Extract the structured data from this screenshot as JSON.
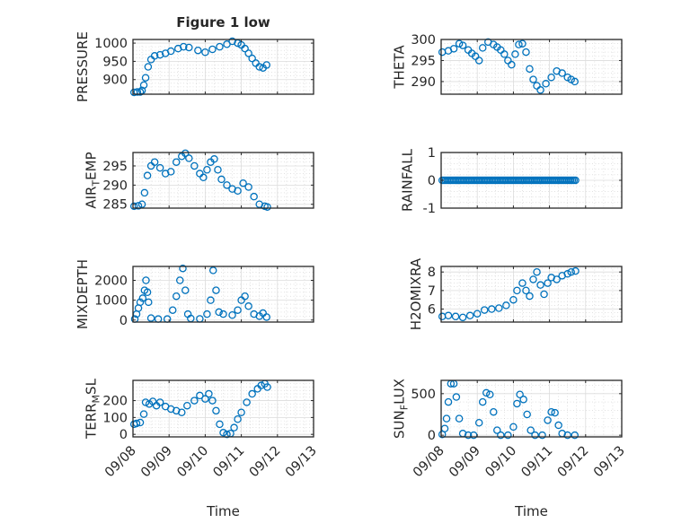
{
  "chart_data": {
    "type": "scatter",
    "marker": "open-circle",
    "color": "#0072BD",
    "title": "Figure 1 low",
    "xlabel": "Time",
    "x_ticks": [
      "09/08",
      "09/09",
      "09/10",
      "09/11",
      "09/12",
      "09/13"
    ],
    "x_range_days": [
      0,
      5
    ],
    "x_start": "09/08",
    "panels": [
      {
        "id": "pressure",
        "ylabel": "PRESSURE",
        "yrange": [
          860,
          1010
        ],
        "yticks": [
          900,
          950,
          1000
        ],
        "ytick_labels": [
          "900",
          "950",
          "1000"
        ],
        "points": [
          [
            0.03,
            865
          ],
          [
            0.12,
            866
          ],
          [
            0.2,
            866
          ],
          [
            0.25,
            870
          ],
          [
            0.3,
            885
          ],
          [
            0.35,
            905
          ],
          [
            0.42,
            935
          ],
          [
            0.5,
            955
          ],
          [
            0.6,
            965
          ],
          [
            0.75,
            968
          ],
          [
            0.9,
            972
          ],
          [
            1.05,
            978
          ],
          [
            1.25,
            985
          ],
          [
            1.4,
            990
          ],
          [
            1.55,
            988
          ],
          [
            1.8,
            980
          ],
          [
            2.0,
            975
          ],
          [
            2.2,
            983
          ],
          [
            2.4,
            990
          ],
          [
            2.6,
            997
          ],
          [
            2.75,
            1005
          ],
          [
            2.9,
            1000
          ],
          [
            3.0,
            995
          ],
          [
            3.1,
            985
          ],
          [
            3.2,
            972
          ],
          [
            3.3,
            958
          ],
          [
            3.4,
            945
          ],
          [
            3.5,
            935
          ],
          [
            3.6,
            932
          ],
          [
            3.7,
            940
          ]
        ]
      },
      {
        "id": "theta",
        "ylabel": "THETA",
        "yrange": [
          287,
          300
        ],
        "yticks": [
          290,
          295,
          300
        ],
        "ytick_labels": [
          "290",
          "295",
          "300"
        ],
        "points": [
          [
            0.03,
            297
          ],
          [
            0.2,
            297.3
          ],
          [
            0.35,
            297.8
          ],
          [
            0.5,
            299
          ],
          [
            0.6,
            298.6
          ],
          [
            0.75,
            297.5
          ],
          [
            0.85,
            296.7
          ],
          [
            0.95,
            296
          ],
          [
            1.05,
            295
          ],
          [
            1.15,
            298
          ],
          [
            1.3,
            299.4
          ],
          [
            1.45,
            298.8
          ],
          [
            1.55,
            298.2
          ],
          [
            1.65,
            297.5
          ],
          [
            1.75,
            296.5
          ],
          [
            1.85,
            295
          ],
          [
            1.95,
            294
          ],
          [
            2.05,
            296.5
          ],
          [
            2.15,
            298.8
          ],
          [
            2.25,
            299
          ],
          [
            2.35,
            297
          ],
          [
            2.45,
            293
          ],
          [
            2.55,
            290.5
          ],
          [
            2.65,
            289
          ],
          [
            2.75,
            288
          ],
          [
            2.9,
            289.5
          ],
          [
            3.05,
            291
          ],
          [
            3.2,
            292.5
          ],
          [
            3.35,
            292
          ],
          [
            3.5,
            291
          ],
          [
            3.6,
            290.5
          ],
          [
            3.7,
            290
          ]
        ]
      },
      {
        "id": "air-temp",
        "ylabel": "AIR",
        "ylabel_sub": "T",
        "ylabel_tail": "EMP",
        "yrange": [
          284,
          298.5
        ],
        "yticks": [
          285,
          290,
          295
        ],
        "ytick_labels": [
          "285",
          "290",
          "295"
        ],
        "points": [
          [
            0.03,
            284.5
          ],
          [
            0.15,
            284.6
          ],
          [
            0.25,
            285
          ],
          [
            0.32,
            288
          ],
          [
            0.4,
            292.5
          ],
          [
            0.5,
            295
          ],
          [
            0.6,
            296
          ],
          [
            0.75,
            294.5
          ],
          [
            0.9,
            293
          ],
          [
            1.05,
            293.5
          ],
          [
            1.2,
            296
          ],
          [
            1.35,
            297.5
          ],
          [
            1.45,
            298.3
          ],
          [
            1.55,
            297
          ],
          [
            1.7,
            295
          ],
          [
            1.85,
            293
          ],
          [
            1.95,
            292
          ],
          [
            2.05,
            294
          ],
          [
            2.15,
            296
          ],
          [
            2.25,
            296.8
          ],
          [
            2.35,
            294
          ],
          [
            2.45,
            291.5
          ],
          [
            2.6,
            290
          ],
          [
            2.75,
            289
          ],
          [
            2.9,
            288.5
          ],
          [
            3.05,
            290.5
          ],
          [
            3.2,
            289.5
          ],
          [
            3.35,
            287
          ],
          [
            3.5,
            285
          ],
          [
            3.65,
            284.5
          ],
          [
            3.72,
            284.3
          ]
        ]
      },
      {
        "id": "rainfall",
        "ylabel": "RAINFALL",
        "yrange": [
          -1,
          1
        ],
        "yticks": [
          -1,
          0,
          1
        ],
        "ytick_labels": [
          "-1",
          "0",
          "1"
        ],
        "points_const": {
          "from": 0.03,
          "to": 3.72,
          "step": 0.045,
          "value": 0
        }
      },
      {
        "id": "mixdepth",
        "ylabel": "MIXDEPTH",
        "yrange": [
          -100,
          2700
        ],
        "yticks": [
          0,
          1000,
          2000
        ],
        "ytick_labels": [
          "0",
          "1000",
          "2000"
        ],
        "points": [
          [
            0.05,
            50
          ],
          [
            0.1,
            300
          ],
          [
            0.15,
            600
          ],
          [
            0.2,
            900
          ],
          [
            0.27,
            1100
          ],
          [
            0.32,
            1500
          ],
          [
            0.36,
            2000
          ],
          [
            0.4,
            1400
          ],
          [
            0.43,
            900
          ],
          [
            0.5,
            100
          ],
          [
            0.7,
            50
          ],
          [
            0.95,
            50
          ],
          [
            1.1,
            500
          ],
          [
            1.2,
            1200
          ],
          [
            1.3,
            2000
          ],
          [
            1.38,
            2600
          ],
          [
            1.45,
            1500
          ],
          [
            1.52,
            300
          ],
          [
            1.6,
            80
          ],
          [
            1.85,
            60
          ],
          [
            2.05,
            300
          ],
          [
            2.15,
            1000
          ],
          [
            2.22,
            2500
          ],
          [
            2.3,
            1500
          ],
          [
            2.38,
            400
          ],
          [
            2.5,
            300
          ],
          [
            2.75,
            250
          ],
          [
            2.9,
            500
          ],
          [
            3.0,
            1000
          ],
          [
            3.1,
            1200
          ],
          [
            3.2,
            700
          ],
          [
            3.35,
            300
          ],
          [
            3.5,
            200
          ],
          [
            3.6,
            350
          ],
          [
            3.7,
            150
          ]
        ]
      },
      {
        "id": "h2omixra",
        "ylabel": "H2OMIXRA",
        "yrange": [
          5.3,
          8.3
        ],
        "yticks": [
          6,
          7,
          8
        ],
        "ytick_labels": [
          "6",
          "7",
          "8"
        ],
        "points": [
          [
            0.03,
            5.6
          ],
          [
            0.2,
            5.65
          ],
          [
            0.4,
            5.6
          ],
          [
            0.6,
            5.55
          ],
          [
            0.8,
            5.65
          ],
          [
            1.0,
            5.75
          ],
          [
            1.2,
            5.95
          ],
          [
            1.4,
            6.0
          ],
          [
            1.6,
            6.05
          ],
          [
            1.8,
            6.2
          ],
          [
            2.0,
            6.5
          ],
          [
            2.1,
            7.0
          ],
          [
            2.25,
            7.4
          ],
          [
            2.35,
            7.0
          ],
          [
            2.45,
            6.7
          ],
          [
            2.55,
            7.6
          ],
          [
            2.65,
            8.0
          ],
          [
            2.75,
            7.3
          ],
          [
            2.85,
            6.8
          ],
          [
            2.95,
            7.4
          ],
          [
            3.05,
            7.7
          ],
          [
            3.2,
            7.6
          ],
          [
            3.35,
            7.8
          ],
          [
            3.5,
            7.9
          ],
          [
            3.6,
            8.0
          ],
          [
            3.72,
            8.05
          ]
        ]
      },
      {
        "id": "terr-msl",
        "ylabel": "TERR",
        "ylabel_sub": "M",
        "ylabel_tail": "SL",
        "yrange": [
          -15,
          320
        ],
        "yticks": [
          0,
          100,
          200
        ],
        "ytick_labels": [
          "0",
          "100",
          "200"
        ],
        "points": [
          [
            0.03,
            60
          ],
          [
            0.1,
            65
          ],
          [
            0.2,
            70
          ],
          [
            0.3,
            120
          ],
          [
            0.35,
            190
          ],
          [
            0.45,
            180
          ],
          [
            0.55,
            195
          ],
          [
            0.65,
            170
          ],
          [
            0.75,
            190
          ],
          [
            0.9,
            165
          ],
          [
            1.05,
            150
          ],
          [
            1.2,
            140
          ],
          [
            1.35,
            130
          ],
          [
            1.5,
            170
          ],
          [
            1.7,
            200
          ],
          [
            1.85,
            230
          ],
          [
            2.0,
            210
          ],
          [
            2.1,
            240
          ],
          [
            2.2,
            200
          ],
          [
            2.3,
            140
          ],
          [
            2.4,
            60
          ],
          [
            2.5,
            10
          ],
          [
            2.6,
            0
          ],
          [
            2.7,
            5
          ],
          [
            2.8,
            40
          ],
          [
            2.9,
            90
          ],
          [
            3.0,
            130
          ],
          [
            3.15,
            190
          ],
          [
            3.3,
            240
          ],
          [
            3.45,
            270
          ],
          [
            3.55,
            290
          ],
          [
            3.65,
            300
          ],
          [
            3.72,
            280
          ]
        ]
      },
      {
        "id": "sun-flux",
        "ylabel": "SUN",
        "ylabel_sub": "F",
        "ylabel_tail": "LUX",
        "yrange": [
          -20,
          660
        ],
        "yticks": [
          0,
          500
        ],
        "ytick_labels": [
          "0",
          "500"
        ],
        "points": [
          [
            0.03,
            10
          ],
          [
            0.1,
            80
          ],
          [
            0.15,
            200
          ],
          [
            0.2,
            400
          ],
          [
            0.27,
            620
          ],
          [
            0.35,
            620
          ],
          [
            0.42,
            460
          ],
          [
            0.5,
            200
          ],
          [
            0.6,
            20
          ],
          [
            0.75,
            0
          ],
          [
            0.9,
            0
          ],
          [
            1.05,
            150
          ],
          [
            1.15,
            400
          ],
          [
            1.25,
            510
          ],
          [
            1.35,
            490
          ],
          [
            1.45,
            280
          ],
          [
            1.55,
            60
          ],
          [
            1.65,
            0
          ],
          [
            1.85,
            0
          ],
          [
            2.0,
            100
          ],
          [
            2.1,
            380
          ],
          [
            2.18,
            490
          ],
          [
            2.28,
            430
          ],
          [
            2.38,
            250
          ],
          [
            2.48,
            60
          ],
          [
            2.6,
            0
          ],
          [
            2.8,
            0
          ],
          [
            2.95,
            180
          ],
          [
            3.05,
            280
          ],
          [
            3.15,
            270
          ],
          [
            3.25,
            120
          ],
          [
            3.35,
            20
          ],
          [
            3.5,
            0
          ],
          [
            3.7,
            0
          ]
        ]
      }
    ]
  }
}
